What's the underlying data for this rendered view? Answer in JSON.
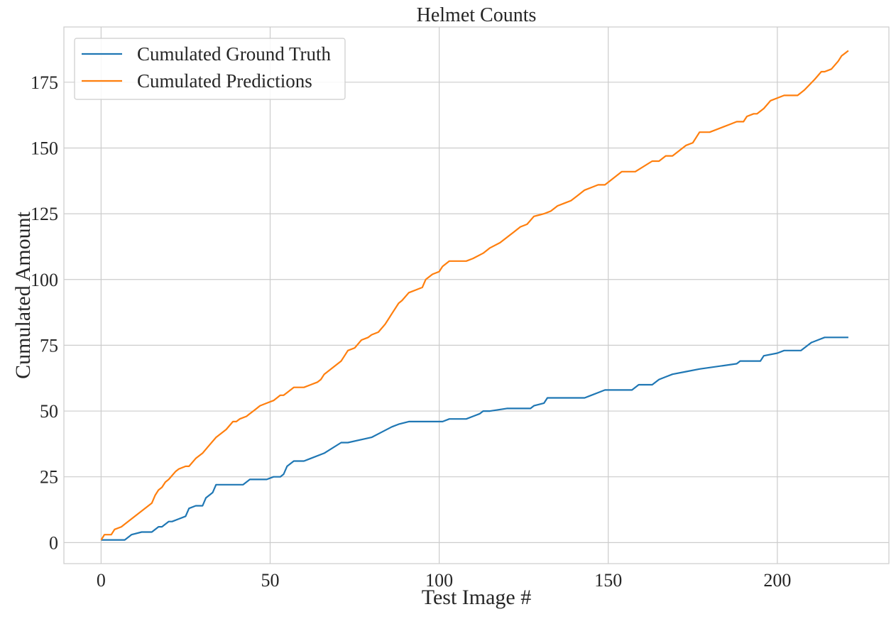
{
  "chart_data": {
    "type": "line",
    "title": "Helmet Counts",
    "xlabel": "Test Image #",
    "ylabel": "Cumulated Amount",
    "xlim": [
      -11,
      233
    ],
    "ylim": [
      -8,
      196
    ],
    "xticks": [
      0,
      50,
      100,
      150,
      200
    ],
    "yticks": [
      0,
      25,
      50,
      75,
      100,
      125,
      150,
      175
    ],
    "grid": true,
    "legend_position": "upper-left",
    "series": [
      {
        "name": "Cumulated Ground Truth",
        "color": "#1f77b4",
        "x": [
          0,
          7,
          9,
          12,
          15,
          17,
          18,
          19,
          20,
          21,
          23,
          25,
          26,
          28,
          30,
          31,
          32,
          33,
          34,
          42,
          44,
          49,
          51,
          53,
          54,
          55,
          57,
          60,
          62,
          66,
          71,
          73,
          80,
          83,
          86,
          88,
          91,
          101,
          103,
          108,
          110,
          112,
          113,
          115,
          120,
          121,
          123,
          127,
          128,
          131,
          132,
          143,
          145,
          147,
          149,
          157,
          159,
          163,
          165,
          167,
          169,
          173,
          177,
          188,
          189,
          195,
          196,
          200,
          202,
          207,
          208,
          210,
          212,
          214,
          221
        ],
        "values": [
          1,
          1,
          3,
          4,
          4,
          6,
          6,
          7,
          8,
          8,
          9,
          10,
          13,
          14,
          14,
          17,
          18,
          19,
          22,
          22,
          24,
          24,
          25,
          25,
          26,
          29,
          31,
          31,
          32,
          34,
          38,
          38,
          40,
          42,
          44,
          45,
          46,
          46,
          47,
          47,
          48,
          49,
          50,
          50,
          51,
          51,
          51,
          51,
          52,
          53,
          55,
          55,
          56,
          57,
          58,
          58,
          60,
          60,
          62,
          63,
          64,
          65,
          66,
          68,
          69,
          69,
          71,
          72,
          73,
          73,
          74,
          76,
          77,
          78,
          78
        ]
      },
      {
        "name": "Cumulated Predictions",
        "color": "#ff7f0e",
        "x": [
          0,
          1,
          3,
          4,
          6,
          7,
          15,
          16,
          17,
          18,
          19,
          20,
          22,
          23,
          25,
          26,
          28,
          30,
          32,
          34,
          36,
          37,
          39,
          40,
          41,
          43,
          44,
          45,
          46,
          47,
          49,
          51,
          53,
          54,
          55,
          57,
          60,
          62,
          64,
          65,
          66,
          67,
          71,
          72,
          73,
          75,
          77,
          79,
          80,
          82,
          84,
          85,
          86,
          88,
          89,
          91,
          93,
          95,
          96,
          98,
          100,
          101,
          103,
          108,
          110,
          113,
          114,
          115,
          118,
          122,
          124,
          126,
          128,
          131,
          133,
          135,
          137,
          139,
          141,
          143,
          145,
          147,
          149,
          154,
          158,
          163,
          165,
          167,
          169,
          171,
          173,
          175,
          177,
          180,
          184,
          186,
          188,
          190,
          191,
          193,
          194,
          196,
          198,
          200,
          202,
          206,
          208,
          211,
          213,
          214,
          216,
          218,
          219,
          220,
          221
        ],
        "values": [
          1,
          3,
          3,
          5,
          6,
          7,
          15,
          18,
          20,
          21,
          23,
          24,
          27,
          28,
          29,
          29,
          32,
          34,
          37,
          40,
          42,
          43,
          46,
          46,
          47,
          48,
          49,
          50,
          51,
          52,
          53,
          54,
          56,
          56,
          57,
          59,
          59,
          60,
          61,
          62,
          64,
          65,
          69,
          71,
          73,
          74,
          77,
          78,
          79,
          80,
          83,
          85,
          87,
          91,
          92,
          95,
          96,
          97,
          100,
          102,
          103,
          105,
          107,
          107,
          108,
          110,
          111,
          112,
          114,
          118,
          120,
          121,
          124,
          125,
          126,
          128,
          129,
          130,
          132,
          134,
          135,
          136,
          136,
          141,
          141,
          145,
          145,
          147,
          147,
          149,
          151,
          152,
          156,
          156,
          158,
          159,
          160,
          160,
          162,
          163,
          163,
          165,
          168,
          169,
          170,
          170,
          172,
          176,
          179,
          179,
          180,
          183,
          185,
          186,
          187
        ]
      }
    ]
  }
}
